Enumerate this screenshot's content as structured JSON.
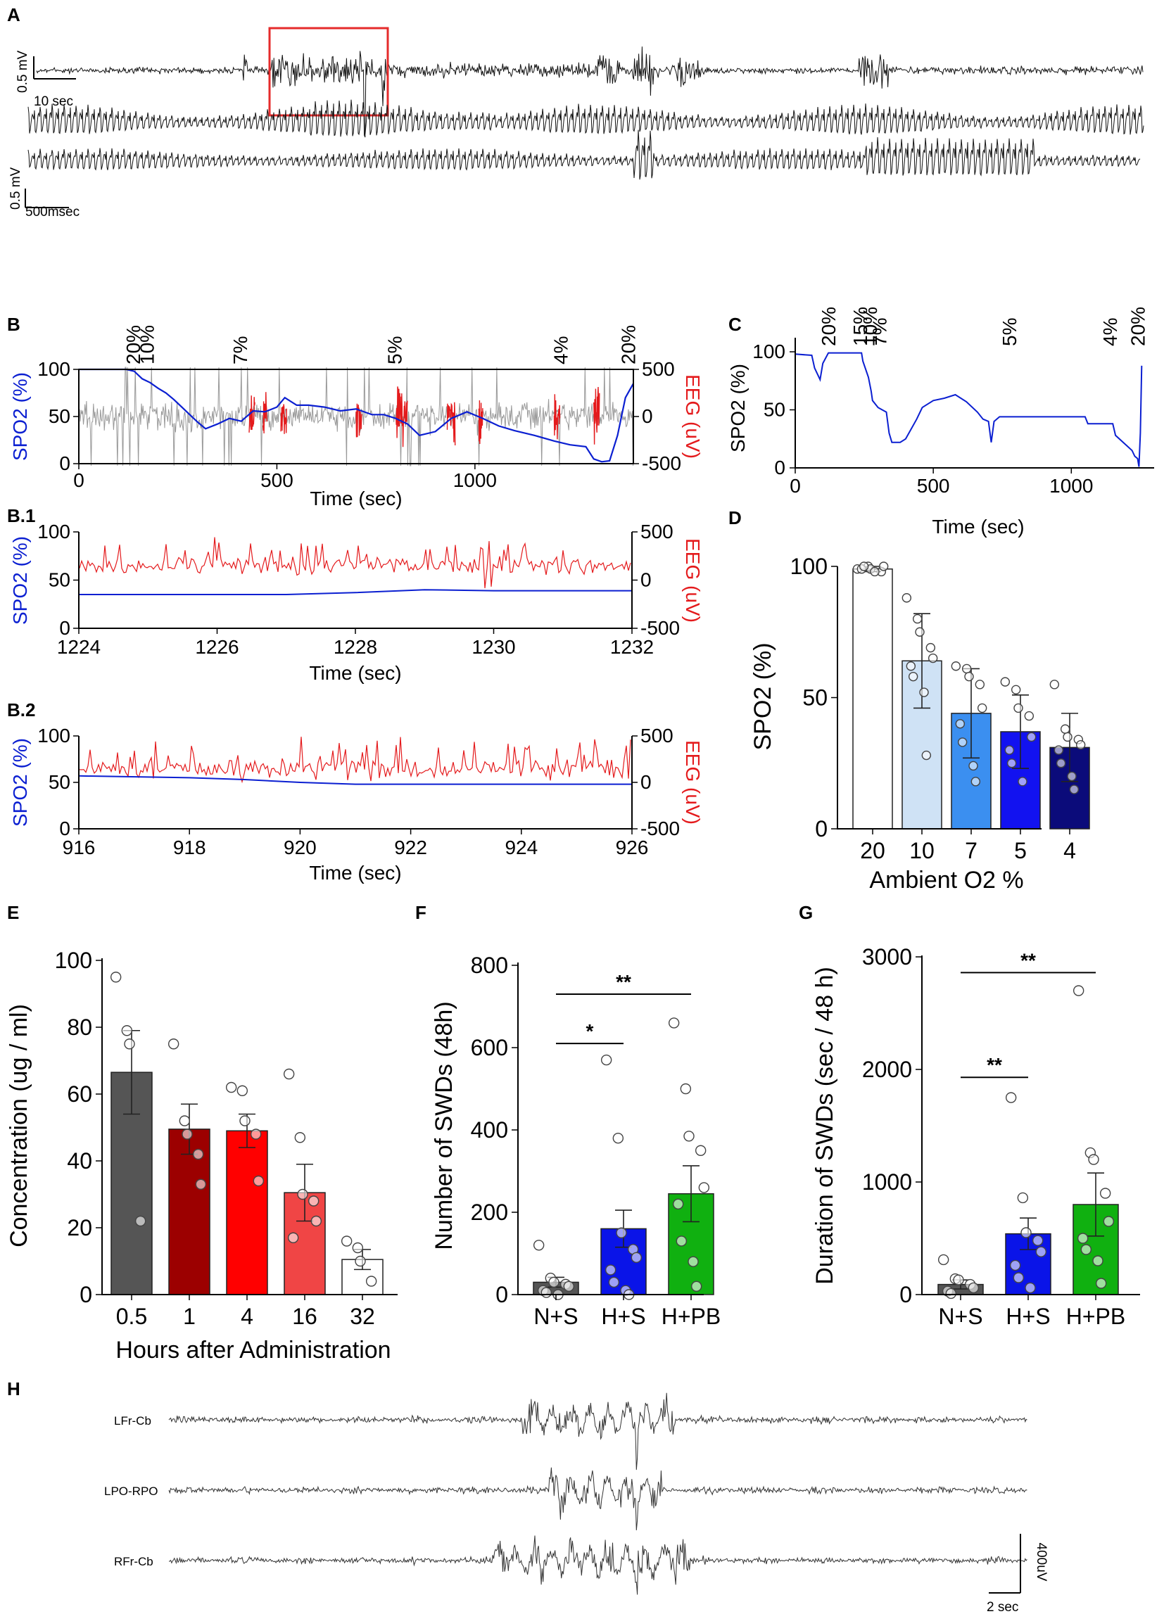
{
  "colors": {
    "eeg_black": "#111111",
    "eeg_gray": "#999999",
    "eeg_red": "#e41a1c",
    "spo2_blue": "#0b1fd1",
    "box_red": "#e52b2b",
    "bar_20": "#ffffff",
    "bar_10": "#cfe2f5",
    "bar_7": "#3b8ff0",
    "bar_5": "#1212f0",
    "bar_4": "#0b0b7a",
    "E_05": "#555555",
    "E_1": "#9c0000",
    "E_4": "#ff0000",
    "E_16": "#f04545",
    "E_32": "#ffffff",
    "F_NS": "#555555",
    "F_HS": "#0a14e8",
    "F_HPB": "#10b010"
  },
  "panels": {
    "A": {
      "label": "A",
      "scale_top_v": "0.5 mV",
      "scale_top_t": "10 sec",
      "scale_bot_v": "0.5 mV",
      "scale_bot_t": "500msec"
    },
    "H": {
      "label": "H",
      "channels": [
        "LFr-Cb",
        "LPO-RPO",
        "RFr-Cb"
      ],
      "scale_v": "400uV",
      "scale_t": "2 sec"
    }
  },
  "chart_data": [
    {
      "id": "B",
      "label": "B",
      "type": "line",
      "title": "",
      "xlabel": "Time (sec)",
      "ylabel_left": "SPO2 (%)",
      "ylabel_right": "EEG (uV)",
      "xlim": [
        0,
        1400
      ],
      "ylim_left": [
        0,
        100
      ],
      "ylim_right": [
        -500,
        500
      ],
      "xticks": [
        "0",
        "500",
        "1000"
      ],
      "yticks_left": [
        "0",
        "50",
        "100"
      ],
      "yticks_right": [
        "-500",
        "0",
        "500"
      ],
      "o2_annotations": [
        {
          "t": 140,
          "label": "20%"
        },
        {
          "t": 175,
          "label": "10%"
        },
        {
          "t": 410,
          "label": "7%"
        },
        {
          "t": 800,
          "label": "5%"
        },
        {
          "t": 1220,
          "label": "4%"
        },
        {
          "t": 1390,
          "label": "20%"
        }
      ],
      "spo2_series": {
        "name": "SPO2",
        "x": [
          0,
          120,
          140,
          160,
          180,
          200,
          220,
          240,
          260,
          280,
          300,
          320,
          350,
          380,
          410,
          440,
          470,
          500,
          520,
          550,
          580,
          620,
          660,
          700,
          740,
          770,
          800,
          830,
          860,
          900,
          940,
          980,
          1020,
          1060,
          1100,
          1150,
          1200,
          1240,
          1280,
          1300,
          1320,
          1340,
          1360,
          1380,
          1400
        ],
        "y": [
          100,
          100,
          98,
          90,
          86,
          80,
          75,
          68,
          60,
          52,
          44,
          37,
          42,
          48,
          45,
          56,
          55,
          60,
          70,
          62,
          62,
          60,
          56,
          58,
          52,
          52,
          48,
          42,
          30,
          34,
          48,
          55,
          48,
          40,
          35,
          30,
          24,
          20,
          18,
          5,
          2,
          3,
          30,
          70,
          85
        ]
      }
    },
    {
      "id": "B1",
      "label": "B.1",
      "type": "line",
      "xlabel": "Time (sec)",
      "ylabel_left": "SPO2 (%)",
      "ylabel_right": "EEG (uV)",
      "xlim": [
        1224,
        1232
      ],
      "ylim_left": [
        0,
        100
      ],
      "ylim_right": [
        -500,
        500
      ],
      "xticks": [
        "1224",
        "1226",
        "1228",
        "1230",
        "1232"
      ],
      "yticks_left": [
        "0",
        "50",
        "100"
      ],
      "yticks_right": [
        "-500",
        "0",
        "500"
      ],
      "spo2_series": {
        "name": "SPO2",
        "x": [
          1224,
          1226,
          1227,
          1228,
          1229,
          1230,
          1232
        ],
        "y": [
          35,
          35,
          35,
          37,
          40,
          39,
          39
        ]
      }
    },
    {
      "id": "B2",
      "label": "B.2",
      "type": "line",
      "xlabel": "Time (sec)",
      "ylabel_left": "SPO2 (%)",
      "ylabel_right": "EEG (uV)",
      "xlim": [
        916,
        926
      ],
      "ylim_left": [
        0,
        100
      ],
      "ylim_right": [
        -500,
        500
      ],
      "xticks": [
        "916",
        "918",
        "920",
        "922",
        "924",
        "926"
      ],
      "yticks_left": [
        "0",
        "50",
        "100"
      ],
      "yticks_right": [
        "-500",
        "0",
        "500"
      ],
      "spo2_series": {
        "name": "SPO2",
        "x": [
          916,
          918,
          919,
          920,
          921,
          922,
          924,
          926
        ],
        "y": [
          57,
          55,
          53,
          50,
          48,
          48,
          48,
          48
        ]
      }
    },
    {
      "id": "C",
      "label": "C",
      "type": "line",
      "xlabel": "Time (sec)",
      "ylabel": "SPO2 (%)",
      "xlim": [
        0,
        1300
      ],
      "ylim": [
        0,
        100
      ],
      "xticks": [
        "0",
        "500",
        "1000"
      ],
      "yticks": [
        "0",
        "50",
        "100"
      ],
      "o2_annotations": [
        {
          "t": 125,
          "label": "20%"
        },
        {
          "t": 240,
          "label": "15%"
        },
        {
          "t": 275,
          "label": "10%"
        },
        {
          "t": 310,
          "label": "7%"
        },
        {
          "t": 780,
          "label": "5%"
        },
        {
          "t": 1145,
          "label": "4%"
        },
        {
          "t": 1245,
          "label": "20%"
        }
      ],
      "series": [
        {
          "name": "SPO2",
          "x": [
            0,
            60,
            70,
            90,
            100,
            120,
            240,
            245,
            265,
            275,
            280,
            300,
            330,
            340,
            350,
            380,
            400,
            440,
            460,
            500,
            540,
            580,
            620,
            660,
            680,
            700,
            710,
            720,
            740,
            900,
            1000,
            1050,
            1060,
            1070,
            1150,
            1160,
            1220,
            1230,
            1240,
            1245,
            1250,
            1255
          ],
          "y": [
            98,
            97,
            86,
            76,
            90,
            99,
            99,
            92,
            78,
            66,
            58,
            52,
            48,
            30,
            22,
            22,
            25,
            42,
            52,
            58,
            60,
            63,
            57,
            48,
            42,
            40,
            22,
            40,
            44,
            44,
            44,
            44,
            38,
            38,
            38,
            28,
            15,
            10,
            8,
            1,
            30,
            88
          ]
        }
      ]
    },
    {
      "id": "D",
      "label": "D",
      "type": "bar",
      "xlabel": "Ambient O2 %",
      "ylabel": "SPO2 (%)",
      "ylim": [
        0,
        100
      ],
      "yticks": [
        "0",
        "50",
        "100"
      ],
      "categories": [
        "20",
        "10",
        "7",
        "5",
        "4"
      ],
      "values": [
        99,
        64,
        44,
        37,
        31
      ],
      "sd": [
        1,
        18,
        17,
        14,
        13
      ],
      "points": [
        [
          99,
          100,
          99,
          98,
          100,
          99,
          100,
          98
        ],
        [
          88,
          80,
          75,
          69,
          65,
          62,
          58,
          52,
          28
        ],
        [
          62,
          61,
          58,
          55,
          46,
          40,
          33,
          24,
          18
        ],
        [
          56,
          53,
          46,
          43,
          35,
          30,
          25,
          18
        ],
        [
          55,
          38,
          35,
          34,
          32,
          30,
          25,
          20,
          15
        ]
      ]
    },
    {
      "id": "E",
      "label": "E",
      "type": "bar",
      "xlabel": "Hours after Administration",
      "ylabel": "Concentration (ug / ml)",
      "ylim": [
        0,
        100
      ],
      "yticks": [
        "0",
        "20",
        "40",
        "60",
        "80",
        "100"
      ],
      "categories": [
        "0.5",
        "1",
        "4",
        "16",
        "32"
      ],
      "values": [
        66.5,
        49.5,
        49,
        30.5,
        10.5
      ],
      "sem": [
        12.5,
        7.5,
        5,
        8.5,
        3
      ],
      "points": [
        [
          95,
          79,
          75,
          22
        ],
        [
          75,
          52,
          48,
          42,
          33
        ],
        [
          62,
          61,
          52,
          48,
          34
        ],
        [
          66,
          47,
          30,
          28,
          22,
          17
        ],
        [
          16,
          14,
          10,
          4
        ]
      ]
    },
    {
      "id": "F",
      "label": "F",
      "type": "bar",
      "xlabel": "",
      "ylabel": "Number of SWDs (48h)",
      "ylim": [
        0,
        800
      ],
      "yticks": [
        "0",
        "200",
        "400",
        "600",
        "800"
      ],
      "categories": [
        "N+S",
        "H+S",
        "H+PB"
      ],
      "values": [
        30,
        160,
        245
      ],
      "sem": [
        12,
        45,
        68
      ],
      "points": [
        [
          120,
          40,
          30,
          25,
          20,
          10,
          5,
          0
        ],
        [
          570,
          380,
          150,
          110,
          90,
          60,
          30,
          10,
          0
        ],
        [
          660,
          500,
          385,
          350,
          260,
          220,
          130,
          80,
          20
        ]
      ],
      "significance": [
        {
          "label": "**",
          "from": "N+S",
          "to": "H+PB",
          "level": 730
        },
        {
          "label": "*",
          "from": "N+S",
          "to": "H+S",
          "level": 610
        }
      ]
    },
    {
      "id": "G",
      "label": "G",
      "type": "bar",
      "xlabel": "",
      "ylabel": "Duration of SWDs (sec / 48 h)",
      "ylim": [
        0,
        3000
      ],
      "yticks": [
        "0",
        "1000",
        "2000",
        "3000"
      ],
      "categories": [
        "N+S",
        "H+S",
        "H+PB"
      ],
      "values": [
        90,
        540,
        800
      ],
      "sem": [
        40,
        140,
        280
      ],
      "points": [
        [
          310,
          140,
          130,
          90,
          60,
          30,
          10
        ],
        [
          1750,
          860,
          550,
          480,
          380,
          260,
          150,
          60
        ],
        [
          2700,
          1260,
          1200,
          900,
          650,
          500,
          400,
          300,
          100
        ]
      ],
      "significance": [
        {
          "label": "**",
          "from": "N+S",
          "to": "H+PB",
          "level": 2860
        },
        {
          "label": "**",
          "from": "N+S",
          "to": "H+S",
          "level": 1930
        }
      ]
    }
  ]
}
